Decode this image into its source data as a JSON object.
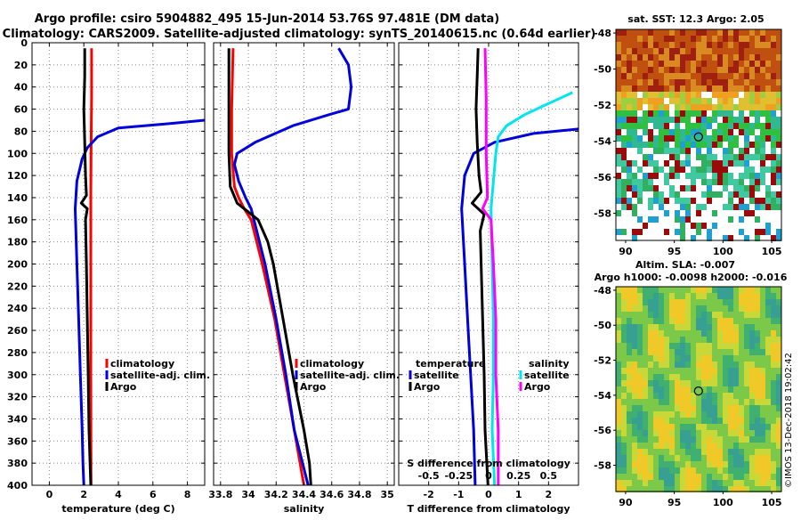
{
  "header": {
    "title_line1": "Argo profile: csiro 5904882_495 15-Jun-2014 53.76S 97.481E (DM data)",
    "title_line2": "Climatology: CARS2009. Satellite-adjusted climatology: synTS_20140615.nc (0.64d earlier)"
  },
  "colors": {
    "climatology": "#ff0000",
    "satellite": "#0000dd",
    "argo": "#000000",
    "salinity_satellite": "#00e5ee",
    "salinity_argo": "#ff00ff",
    "grid": "#888888"
  },
  "chart_data": [
    {
      "type": "line",
      "name": "temperature-panel",
      "xlabel": "temperature (deg C)",
      "ylabel": "",
      "xlim": [
        -1,
        9
      ],
      "ylim": [
        400,
        0
      ],
      "x_ticks": [
        0,
        2,
        4,
        6,
        8
      ],
      "x_tick_labels": [
        "0",
        "2",
        "4",
        "6",
        "8"
      ],
      "y_ticks": [
        0,
        20,
        40,
        60,
        80,
        100,
        120,
        140,
        160,
        180,
        200,
        220,
        240,
        260,
        280,
        300,
        320,
        340,
        360,
        380,
        400
      ],
      "y_tick_labels": [
        "0",
        "20",
        "40",
        "60",
        "80",
        "100",
        "120",
        "140",
        "160",
        "180",
        "200",
        "220",
        "240",
        "260",
        "280",
        "300",
        "320",
        "340",
        "360",
        "380",
        "400"
      ],
      "legend": [
        "climatology",
        "satellite-adj. clim.",
        "Argo"
      ],
      "series": [
        {
          "name": "climatology",
          "color": "#ff0000",
          "depth": [
            5,
            50,
            100,
            140,
            150,
            200,
            300,
            400
          ],
          "values": [
            2.45,
            2.45,
            2.42,
            2.4,
            2.4,
            2.4,
            2.4,
            2.42
          ]
        },
        {
          "name": "satellite-adj. clim.",
          "color": "#0000dd",
          "depth": [
            70,
            73,
            77,
            85,
            95,
            105,
            125,
            150,
            200,
            250,
            300,
            350,
            380,
            400
          ],
          "values": [
            9.0,
            7.0,
            4.0,
            2.8,
            2.2,
            1.9,
            1.6,
            1.5,
            1.6,
            1.7,
            1.8,
            1.9,
            1.95,
            2.0
          ]
        },
        {
          "name": "Argo",
          "color": "#000000",
          "depth": [
            5,
            30,
            60,
            90,
            120,
            138,
            145,
            150,
            160,
            200,
            250,
            300,
            350,
            400
          ],
          "values": [
            2.05,
            2.05,
            2.0,
            2.05,
            2.1,
            2.15,
            1.85,
            2.2,
            2.1,
            2.15,
            2.2,
            2.25,
            2.3,
            2.4
          ]
        }
      ]
    },
    {
      "type": "line",
      "name": "salinity-panel",
      "xlabel": "salinity",
      "xlim": [
        33.75,
        35.05
      ],
      "ylim": [
        400,
        0
      ],
      "x_ticks": [
        33.8,
        34,
        34.2,
        34.4,
        34.6,
        34.8,
        35
      ],
      "x_tick_labels": [
        "33.8",
        "34",
        "34.2",
        "34.4",
        "34.6",
        "34.8",
        "35"
      ],
      "legend": [
        "climatology",
        "satellite-adj. clim.",
        "Argo"
      ],
      "series": [
        {
          "name": "climatology",
          "color": "#ff0000",
          "depth": [
            5,
            60,
            100,
            130,
            140,
            150,
            160,
            200,
            250,
            300,
            350,
            400
          ],
          "values": [
            33.89,
            33.88,
            33.88,
            33.9,
            33.93,
            33.97,
            34.02,
            34.1,
            34.19,
            34.26,
            34.33,
            34.4
          ]
        },
        {
          "name": "satellite-adj. clim.",
          "color": "#0000dd",
          "depth": [
            5,
            20,
            40,
            60,
            65,
            75,
            90,
            100,
            110,
            125,
            140,
            150,
            160,
            200,
            250,
            300,
            350,
            400
          ],
          "values": [
            34.65,
            34.72,
            34.74,
            34.72,
            34.58,
            34.32,
            34.05,
            33.92,
            33.9,
            33.93,
            33.98,
            34.02,
            34.04,
            34.12,
            34.2,
            34.27,
            34.33,
            34.43
          ]
        },
        {
          "name": "Argo",
          "color": "#000000",
          "depth": [
            5,
            50,
            100,
            130,
            145,
            155,
            160,
            180,
            200,
            250,
            300,
            350,
            380,
            400
          ],
          "values": [
            33.86,
            33.86,
            33.86,
            33.87,
            33.92,
            34.02,
            34.07,
            34.14,
            34.18,
            34.25,
            34.32,
            34.4,
            34.44,
            34.45
          ]
        }
      ]
    },
    {
      "type": "line",
      "name": "difference-panel",
      "xlabel": "T difference from climatology",
      "xlabel_top": "S difference from climatology",
      "xlim": [
        -3,
        3
      ],
      "ylim": [
        400,
        0
      ],
      "x_ticks": [
        -2,
        -1,
        0,
        1,
        2
      ],
      "x_tick_labels": [
        "-2",
        "-1",
        "0",
        "1",
        "2"
      ],
      "s_tick_labels": [
        "-0.5",
        "-0.25",
        "0",
        "0.25",
        "0.5"
      ],
      "legend_temperature_title": "temperature",
      "legend_salinity_title": "salinity",
      "legend": [
        "satellite",
        "Argo",
        "satellite",
        "Argo"
      ],
      "series": [
        {
          "name": "T satellite",
          "color": "#0000dd",
          "depth": [
            78,
            82,
            90,
            100,
            120,
            150,
            200,
            250,
            300,
            350,
            400
          ],
          "values": [
            3.0,
            1.5,
            0.2,
            -0.5,
            -0.8,
            -0.9,
            -0.8,
            -0.7,
            -0.6,
            -0.5,
            -0.45
          ]
        },
        {
          "name": "T Argo",
          "color": "#000000",
          "depth": [
            5,
            30,
            60,
            90,
            120,
            135,
            145,
            155,
            170,
            200,
            250,
            300,
            350,
            400
          ],
          "values": [
            -0.35,
            -0.38,
            -0.42,
            -0.38,
            -0.32,
            -0.25,
            -0.55,
            -0.15,
            -0.28,
            -0.25,
            -0.2,
            -0.15,
            -0.12,
            -0.02
          ]
        },
        {
          "name": "S satellite",
          "color": "#00e5ee",
          "depth": [
            45,
            55,
            65,
            75,
            85,
            100,
            125,
            150,
            200,
            250,
            300,
            350,
            400
          ],
          "values": [
            0.7,
            0.5,
            0.3,
            0.15,
            0.08,
            0.06,
            0.04,
            0.02,
            0.03,
            0.04,
            0.04,
            0.03,
            0.05
          ]
        },
        {
          "name": "S Argo",
          "color": "#ff00ff",
          "depth": [
            5,
            50,
            100,
            140,
            150,
            160,
            200,
            250,
            300,
            350,
            400
          ],
          "values": [
            -0.03,
            -0.02,
            -0.02,
            -0.01,
            -0.05,
            0.02,
            0.04,
            0.06,
            0.06,
            0.08,
            0.08
          ]
        }
      ]
    },
    {
      "type": "heatmap",
      "name": "sst-map",
      "title": "sat. SST: 12.3 Argo: 2.05",
      "xlim": [
        89,
        106
      ],
      "ylim": [
        -59.5,
        -47.8
      ],
      "x_ticks": [
        90,
        95,
        100,
        105
      ],
      "y_ticks": [
        -48,
        -50,
        -52,
        -54,
        -56,
        -58
      ],
      "argo_position": [
        97.481,
        -53.76
      ]
    },
    {
      "type": "heatmap",
      "name": "sla-map",
      "title": "Altim. SLA: -0.007",
      "subtitle": "Argo h1000: -0.0098 h2000: -0.016",
      "xlim": [
        89,
        106
      ],
      "ylim": [
        -59.5,
        -47.8
      ],
      "x_ticks": [
        90,
        95,
        100,
        105
      ],
      "y_ticks": [
        -48,
        -50,
        -52,
        -54,
        -56,
        -58
      ],
      "argo_position": [
        97.481,
        -53.76
      ]
    }
  ],
  "footer": {
    "credit": "©IMOS 13-Dec-2018 19:02:42"
  }
}
